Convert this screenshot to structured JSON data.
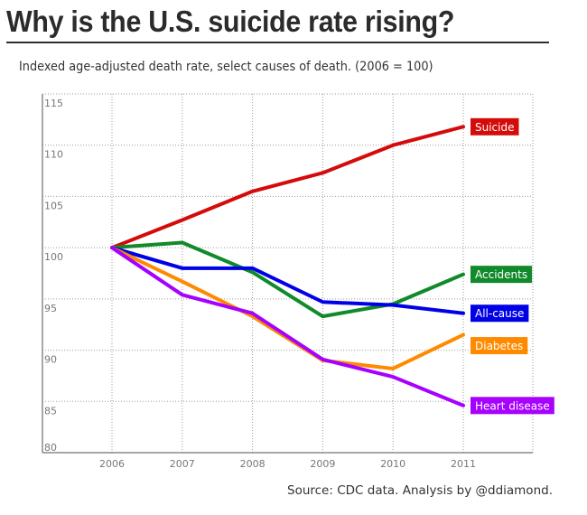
{
  "title": "Why is the U.S. suicide rate rising?",
  "subtitle": "Indexed age-adjusted death rate, select causes of death. (2006 = 100)",
  "source": "Source: CDC data. Analysis by @ddiamond.",
  "chart_data": {
    "type": "line",
    "title": "Why is the U.S. suicide rate rising?",
    "subtitle": "Indexed age-adjusted death rate, select causes of death. (2006 = 100)",
    "xlabel": "",
    "ylabel": "",
    "x": [
      2006,
      2007,
      2008,
      2009,
      2010,
      2011
    ],
    "x_tick_labels": [
      "2006",
      "2007",
      "2008",
      "2009",
      "2010",
      "2011"
    ],
    "ylim": [
      80,
      115
    ],
    "y_ticks": [
      80,
      85,
      90,
      95,
      100,
      105,
      110,
      115
    ],
    "y_tick_labels": [
      "80",
      "85",
      "90",
      "95",
      "100",
      "105",
      "110",
      "115"
    ],
    "grid": true,
    "legend": "direct labels at right end of each line",
    "series": [
      {
        "name": "Suicide",
        "color": "#d40b0b",
        "values": [
          100,
          102.7,
          105.5,
          107.3,
          110.0,
          111.8
        ]
      },
      {
        "name": "Accidents",
        "color": "#108a2a",
        "values": [
          100,
          100.5,
          97.6,
          93.3,
          94.5,
          97.4
        ]
      },
      {
        "name": "All-cause",
        "color": "#0000e6",
        "values": [
          100,
          98.0,
          98.0,
          94.7,
          94.4,
          93.6
        ]
      },
      {
        "name": "Diabetes",
        "color": "#ff8a00",
        "values": [
          100,
          96.7,
          93.3,
          89.0,
          88.2,
          91.5
        ]
      },
      {
        "name": "Heart disease",
        "color": "#a600ff",
        "values": [
          100,
          95.4,
          93.6,
          89.1,
          87.4,
          84.6
        ]
      }
    ],
    "annotation": "Source: CDC data. Analysis by @ddiamond."
  }
}
